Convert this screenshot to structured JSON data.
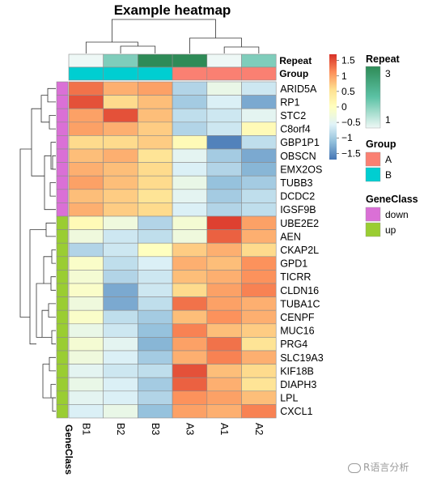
{
  "chart_data": {
    "type": "heatmap",
    "title": "Example heatmap",
    "columns": [
      "B1",
      "B2",
      "B3",
      "A3",
      "A1",
      "A2"
    ],
    "rows": [
      "ARID5A",
      "RP1",
      "STC2",
      "C8orf4",
      "GBP1P1",
      "OBSCN",
      "EMX2OS",
      "TUBB3",
      "DCDC2",
      "IGSF9B",
      "UBE2E2",
      "AEN",
      "CKAP2L",
      "GPD1",
      "TICRR",
      "CLDN16",
      "TUBA1C",
      "CENPF",
      "MUC16",
      "PRG4",
      "SLC19A3",
      "KIF18B",
      "DIAPH3",
      "LPL",
      "CXCL1"
    ],
    "values": [
      [
        1.3,
        0.9,
        1.0,
        -0.9,
        -0.4,
        -0.7
      ],
      [
        1.5,
        0.6,
        0.8,
        -1.0,
        -0.6,
        -1.3
      ],
      [
        1.0,
        1.5,
        0.8,
        -0.8,
        -0.7,
        -0.5
      ],
      [
        1.0,
        0.9,
        0.7,
        -0.9,
        -0.7,
        0.1
      ],
      [
        0.6,
        0.6,
        0.7,
        0.1,
        -1.6,
        -0.8
      ],
      [
        0.8,
        0.9,
        0.5,
        -0.5,
        -1.0,
        -1.3
      ],
      [
        0.9,
        0.8,
        0.6,
        -0.6,
        -0.9,
        -1.2
      ],
      [
        1.0,
        0.8,
        0.6,
        -0.4,
        -1.1,
        -1.0
      ],
      [
        0.8,
        0.7,
        0.5,
        -0.5,
        -1.0,
        -0.8
      ],
      [
        0.9,
        0.7,
        0.6,
        -0.6,
        -0.9,
        -0.8
      ],
      [
        0.1,
        -0.3,
        -0.9,
        -0.2,
        1.6,
        1.0
      ],
      [
        -0.3,
        -0.7,
        -0.8,
        -0.3,
        1.4,
        0.9
      ],
      [
        -0.9,
        -0.7,
        0.0,
        0.7,
        0.9,
        0.6
      ],
      [
        -0.1,
        -0.8,
        -0.6,
        0.9,
        0.8,
        1.1
      ],
      [
        -0.2,
        -0.9,
        -0.7,
        0.8,
        0.9,
        1.1
      ],
      [
        -0.1,
        -1.3,
        -0.7,
        0.6,
        1.0,
        1.2
      ],
      [
        -0.3,
        -1.3,
        -0.8,
        1.3,
        1.0,
        0.9
      ],
      [
        -0.1,
        -0.8,
        -1.0,
        0.8,
        1.1,
        0.9
      ],
      [
        -0.4,
        -0.7,
        -1.1,
        1.2,
        0.8,
        0.7
      ],
      [
        -0.2,
        -0.5,
        -1.2,
        1.0,
        1.3,
        0.5
      ],
      [
        -0.3,
        -0.6,
        -1.0,
        0.9,
        1.2,
        0.9
      ],
      [
        -0.5,
        -0.7,
        -0.8,
        1.5,
        0.8,
        0.6
      ],
      [
        -0.4,
        -0.6,
        -1.0,
        1.4,
        0.9,
        0.5
      ],
      [
        -0.5,
        -0.6,
        -0.9,
        1.1,
        1.0,
        0.8
      ],
      [
        -0.6,
        -0.4,
        -1.1,
        1.0,
        0.9,
        1.2
      ]
    ],
    "color_scale": {
      "min": -1.7,
      "max": 1.7,
      "stops": [
        "#4575b4",
        "#91bfdb",
        "#e0f3f8",
        "#ffffbf",
        "#fee090",
        "#fc8d59",
        "#d73027"
      ],
      "ticks": [
        1.5,
        1,
        0.5,
        0,
        -0.5,
        -1,
        -1.5
      ],
      "tick_labels": [
        "1.5",
        "1",
        "0.5",
        "0",
        "−0.5",
        "−1",
        "−1.5"
      ]
    },
    "column_annotations": [
      {
        "name": "Repeat",
        "values": [
          1,
          2,
          3,
          3,
          1,
          2
        ]
      },
      {
        "name": "Group",
        "values": [
          "B",
          "B",
          "B",
          "A",
          "A",
          "A"
        ]
      }
    ],
    "row_annotations": [
      {
        "name": "GeneClass",
        "values": [
          "down",
          "down",
          "down",
          "down",
          "down",
          "down",
          "down",
          "down",
          "down",
          "down",
          "up",
          "up",
          "up",
          "up",
          "up",
          "up",
          "up",
          "up",
          "up",
          "up",
          "up",
          "up",
          "up",
          "up",
          "up"
        ]
      }
    ],
    "legends": [
      {
        "title": "Repeat",
        "type": "continuous",
        "stops": [
          "#eef8f6",
          "#5cc2a5",
          "#2e8b57"
        ],
        "labels": [
          "3",
          "1"
        ]
      },
      {
        "title": "Group",
        "type": "discrete",
        "items": [
          {
            "label": "A",
            "color": "#fa8072"
          },
          {
            "label": "B",
            "color": "#00ced1"
          }
        ]
      },
      {
        "title": "GeneClass",
        "type": "discrete",
        "items": [
          {
            "label": "down",
            "color": "#da70d6"
          },
          {
            "label": "up",
            "color": "#9acd32"
          }
        ]
      }
    ],
    "annotation_colors": {
      "Repeat": {
        "1": "#eef8f6",
        "2": "#7fcdbb",
        "3": "#2e8b57"
      },
      "Group": {
        "A": "#fa8072",
        "B": "#00ced1"
      },
      "GeneClass": {
        "down": "#da70d6",
        "up": "#9acd32"
      }
    },
    "dendrogram_columns": "clustered: (B1,(B2,B3)) vs (A3,(A1,A2))",
    "dendrogram_rows": "clustered: down genes vs up genes"
  },
  "watermark": "R语言分析"
}
